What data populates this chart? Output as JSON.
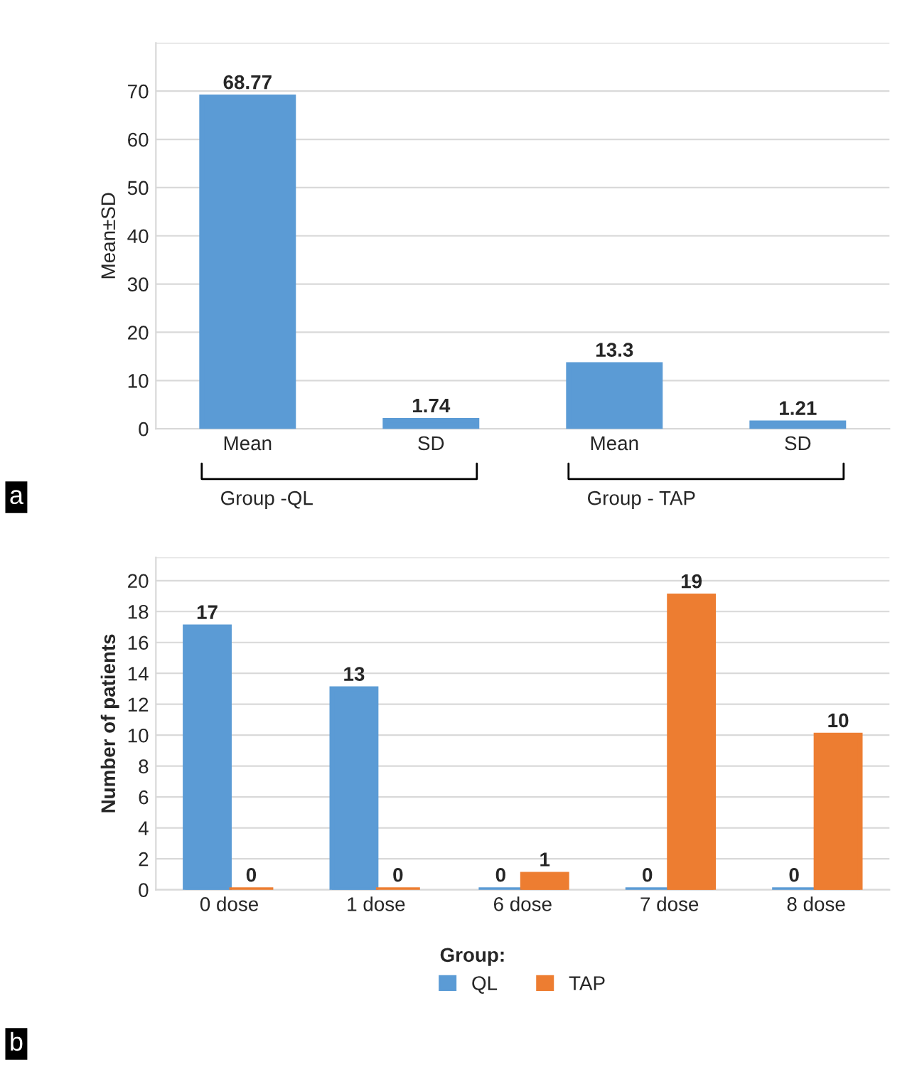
{
  "chart_data": [
    {
      "type": "bar",
      "ylabel": "Mean±SD",
      "categories": [
        "Mean",
        "SD",
        "Mean",
        "SD"
      ],
      "series": [
        {
          "color": "#5b9bd5",
          "values": [
            68.77,
            1.74,
            13.3,
            1.21
          ]
        }
      ],
      "ylim": [
        0,
        80
      ],
      "yticks": [
        0,
        10,
        20,
        30,
        40,
        50,
        60,
        70,
        {
          "value": 80,
          "label": null
        }
      ],
      "grid": "y",
      "data_labels": true,
      "legend": false,
      "annotations": [
        "Group -QL",
        "Group - TAP",
        "a"
      ]
    },
    {
      "type": "bar",
      "ylabel": "Number of patients",
      "categories": [
        "0 dose",
        "1 dose",
        "6 dose",
        "7 dose",
        "8 dose"
      ],
      "series": [
        {
          "name": "QL",
          "color": "#5b9bd5",
          "values": [
            17,
            13,
            0,
            0,
            0
          ]
        },
        {
          "name": "TAP",
          "color": "#ed7d31",
          "values": [
            0,
            0,
            1,
            19,
            10
          ]
        }
      ],
      "ylim": [
        0,
        21.5
      ],
      "yticks": [
        0,
        2,
        4,
        6,
        8,
        10,
        12,
        14,
        16,
        18,
        20,
        {
          "value": 21.5,
          "label": null
        }
      ],
      "grid": "y",
      "data_labels": true,
      "legend": "bottom",
      "legend_title": "Group:",
      "annotations": [
        "b"
      ]
    }
  ]
}
